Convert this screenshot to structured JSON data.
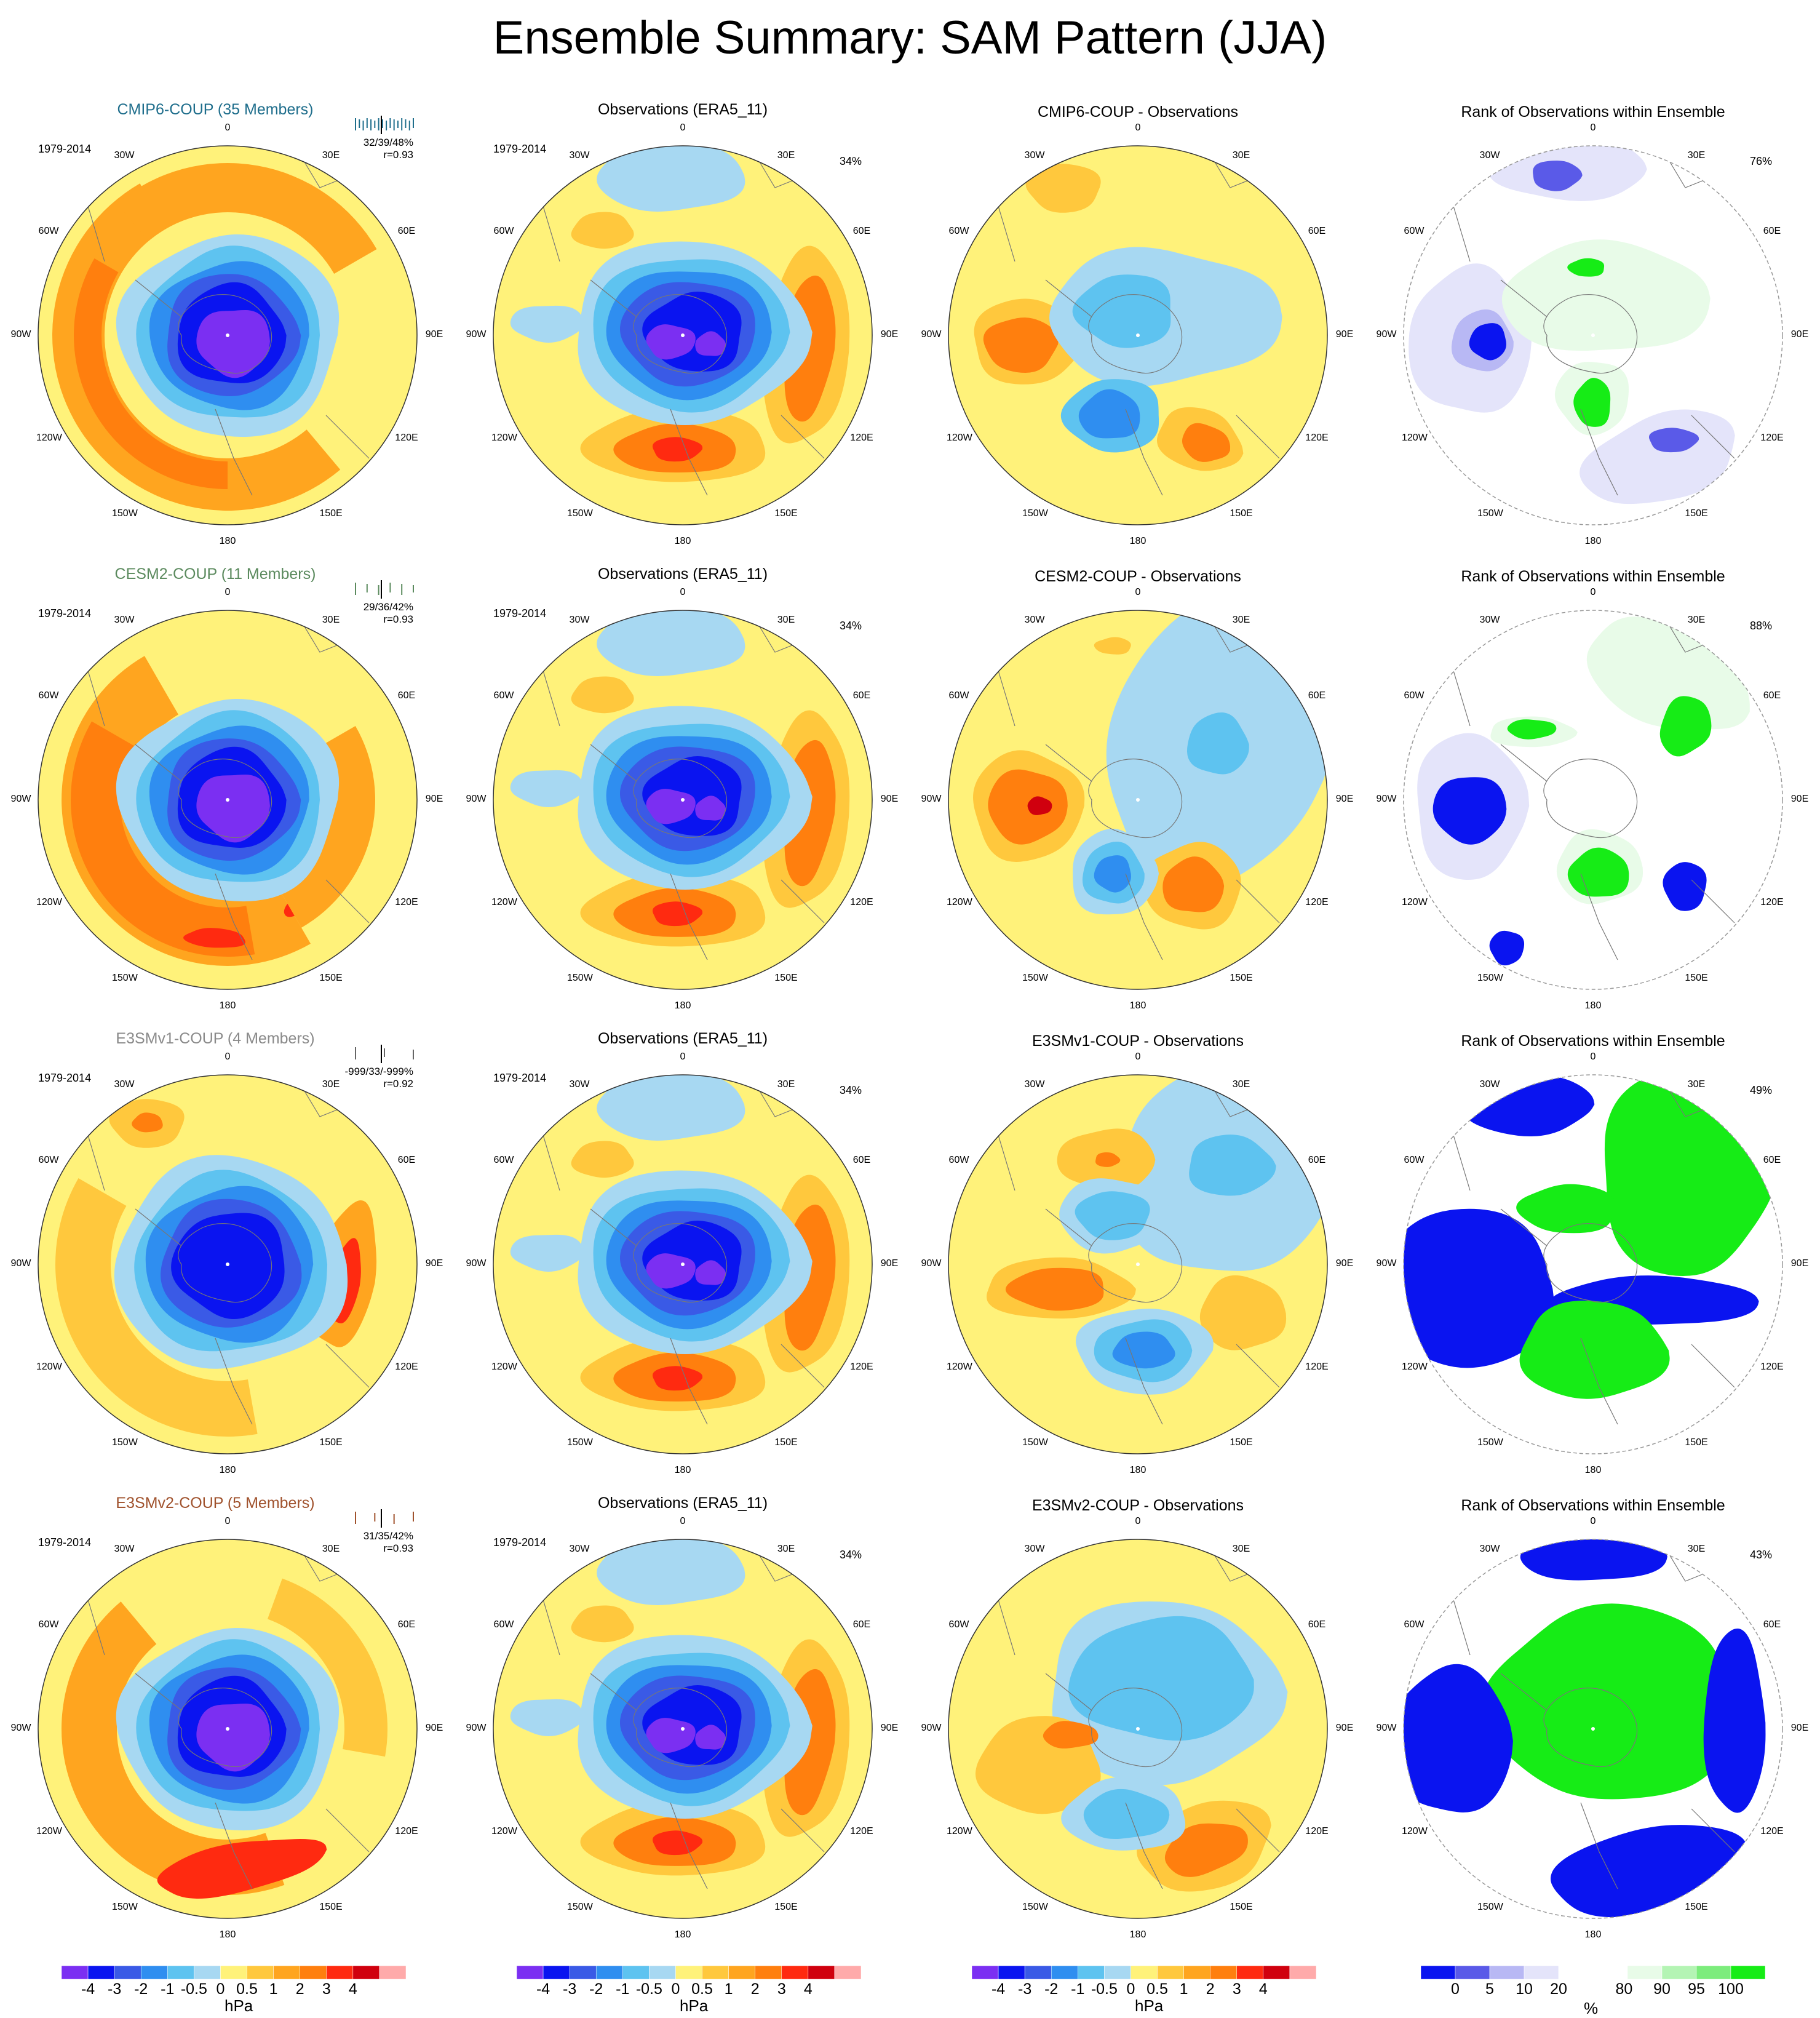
{
  "title": "Ensemble Summary: SAM Pattern (JJA)",
  "longitude_labels": [
    "0",
    "30E",
    "60E",
    "90E",
    "120E",
    "150E",
    "180",
    "150W",
    "120W",
    "90W",
    "60W",
    "30W"
  ],
  "period": "1979-2014",
  "rows": [
    {
      "model_title": "CMIP6-COUP (35 Members)",
      "model_color": "#1f6e8c",
      "stats": "32/39/48%",
      "corr": "r=0.93",
      "diff_title": "CMIP6-COUP - Observations",
      "rank_pct": "76%",
      "tick_color": "#1f6e8c",
      "ticks": 16
    },
    {
      "model_title": "CESM2-COUP (11 Members)",
      "model_color": "#5b8a5e",
      "stats": "29/36/42%",
      "corr": "r=0.93",
      "diff_title": "CESM2-COUP - Observations",
      "rank_pct": "88%",
      "tick_color": "#5b8a5e",
      "ticks": 6
    },
    {
      "model_title": "E3SMv1-COUP (4 Members)",
      "model_color": "#8a8a8a",
      "stats": "-999/33/-999%",
      "corr": "r=0.92",
      "diff_title": "E3SMv1-COUP - Observations",
      "rank_pct": "49%",
      "tick_color": "#666666",
      "ticks": 3
    },
    {
      "model_title": "E3SMv2-COUP (5 Members)",
      "model_color": "#a0522d",
      "stats": "31/35/42%",
      "corr": "r=0.93",
      "diff_title": "E3SMv2-COUP - Observations",
      "rank_pct": "43%",
      "tick_color": "#a0522d",
      "ticks": 4
    }
  ],
  "obs_title": "Observations (ERA5_11)",
  "obs_pct": "34%",
  "rank_title": "Rank of Observations within Ensemble",
  "hpa_colorbar": {
    "unit": "hPa",
    "colors": [
      "#7b2ff2",
      "#0a14f0",
      "#3a5ae6",
      "#2f8ef0",
      "#5ec3f0",
      "#a7d8f2",
      "#fff27a",
      "#ffc83d",
      "#ffa51f",
      "#ff7f0e",
      "#ff2a10",
      "#d0000e",
      "#ffaaaa"
    ],
    "tick_labels": [
      "-4",
      "-3",
      "-2",
      "-1",
      "-0.5",
      "0",
      "0.5",
      "1",
      "2",
      "3",
      "4"
    ]
  },
  "rank_colorbar": {
    "unit": "%",
    "colors": [
      "#0a14f0",
      "#5a5ae8",
      "#b8b8f4",
      "#e4e4fa",
      "#ffffff",
      "#ffffff",
      "#e8fbe8",
      "#b4f4b4",
      "#7cec7c",
      "#16ec16"
    ],
    "tick_labels": [
      "0",
      "5",
      "10",
      "20",
      "80",
      "90",
      "95",
      "100"
    ]
  }
}
